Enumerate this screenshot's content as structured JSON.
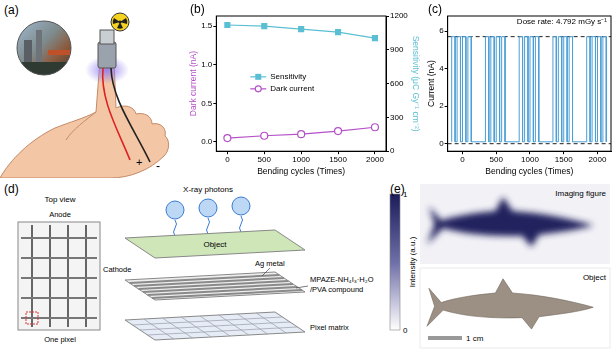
{
  "panel_labels": [
    "(a)",
    "(b)",
    "(c)",
    "(d)",
    "(e)"
  ],
  "panel_a": {
    "signs": [
      "+",
      "-"
    ]
  },
  "chart_data": [
    {
      "type": "line",
      "x_label": "Bending cycles (Times)",
      "y_label": "Dark current (nA)",
      "y2_label": "Sensitivity (μC Gy⁻¹ cm⁻²)",
      "x": [
        0,
        500,
        1000,
        1500,
        2000
      ],
      "xlim": [
        -150,
        2150
      ],
      "xticks": [
        0,
        500,
        1000,
        1500,
        2000
      ],
      "ylim": [
        -0.12,
        1.63
      ],
      "yticks": [
        {
          "value": 0,
          "label": "0.0"
        },
        0.5,
        {
          "value": 1,
          "label": "1.0"
        },
        1.5
      ],
      "y2lim": [
        0,
        1200
      ],
      "y2ticks": [
        0,
        300,
        600,
        900,
        1200
      ],
      "series": [
        {
          "name": "Sensitivity",
          "color": "#5bbfd3",
          "marker": "square",
          "axis": "y2",
          "values": [
            1120,
            1110,
            1084,
            1057,
            1003
          ]
        },
        {
          "name": "Dark current",
          "color": "#b450c8",
          "marker": "circle",
          "values": [
            0.05,
            0.08,
            0.1,
            0.14,
            0.19
          ]
        }
      ],
      "legend": "center",
      "grid": false
    },
    {
      "type": "line",
      "x_label": "Bending cycles (Times)",
      "y_label": "Current (nA)",
      "annotation": "Dose rate: 4.792 mGy s⁻¹",
      "xlim": [
        -220,
        2200
      ],
      "xticks": [
        0,
        500,
        1000,
        1500,
        2000
      ],
      "ylim": [
        -0.4,
        6.8
      ],
      "yticks": [
        0,
        2,
        4,
        6
      ],
      "hlines": [
        5.7,
        0
      ],
      "color": "#4a9fd6",
      "grid": false,
      "x": [
        -160,
        -160,
        -110,
        -110,
        -80,
        -80,
        -30,
        -30,
        0,
        0,
        50,
        50,
        80,
        80,
        130,
        130,
        340,
        340,
        390,
        390,
        420,
        420,
        470,
        470,
        500,
        500,
        550,
        550,
        580,
        580,
        630,
        630,
        840,
        840,
        890,
        890,
        920,
        920,
        970,
        970,
        1000,
        1000,
        1050,
        1050,
        1080,
        1080,
        1130,
        1130,
        1340,
        1340,
        1390,
        1390,
        1420,
        1420,
        1470,
        1470,
        1500,
        1500,
        1550,
        1550,
        1580,
        1580,
        1630,
        1630,
        1840,
        1840,
        1890,
        1890,
        1920,
        1920,
        1970,
        1970,
        2000,
        2000,
        2050,
        2050,
        2080,
        2080,
        2130,
        2130
      ],
      "values": [
        0.1,
        5.7,
        5.7,
        0.1,
        0.1,
        5.7,
        5.7,
        0.1,
        0.1,
        5.7,
        5.7,
        0.1,
        0.1,
        5.7,
        5.7,
        0.1,
        0.1,
        5.7,
        5.7,
        0.1,
        0.1,
        5.7,
        5.7,
        0.1,
        0.1,
        5.7,
        5.7,
        0.1,
        0.1,
        5.7,
        5.7,
        0.1,
        0.1,
        5.7,
        5.7,
        0.1,
        0.1,
        5.7,
        5.7,
        0.1,
        0.1,
        5.7,
        5.7,
        0.1,
        0.1,
        5.7,
        5.7,
        0.1,
        0.1,
        5.7,
        5.7,
        0.1,
        0.1,
        5.7,
        5.7,
        0.1,
        0.1,
        5.7,
        5.7,
        0.1,
        0.1,
        5.7,
        5.7,
        0.1,
        0.1,
        5.7,
        5.7,
        0.1,
        0.1,
        5.7,
        5.7,
        0.1,
        0.1,
        5.7,
        5.7,
        0.1,
        0.1,
        5.7,
        5.7,
        0.1
      ]
    }
  ],
  "panel_d": {
    "top_view": "Top view",
    "anode": "Anode",
    "cathode": "Cathode",
    "one_pixel": "One pixel",
    "photons": "X-ray photons",
    "object": "Object",
    "electrode": "Ag metal",
    "compound": [
      "MPAZE-NH₄I₃·H₂O",
      "/PVA compound"
    ],
    "pixel_matrix": "Pixel matrix"
  },
  "panel_e": {
    "imaging": "Imaging figure",
    "object": "Object",
    "scale_bar": "1 cm",
    "colorbar": {
      "label": "Intensity (a.u.)",
      "range": [
        0,
        1
      ],
      "ticks": [
        0,
        1
      ]
    }
  }
}
